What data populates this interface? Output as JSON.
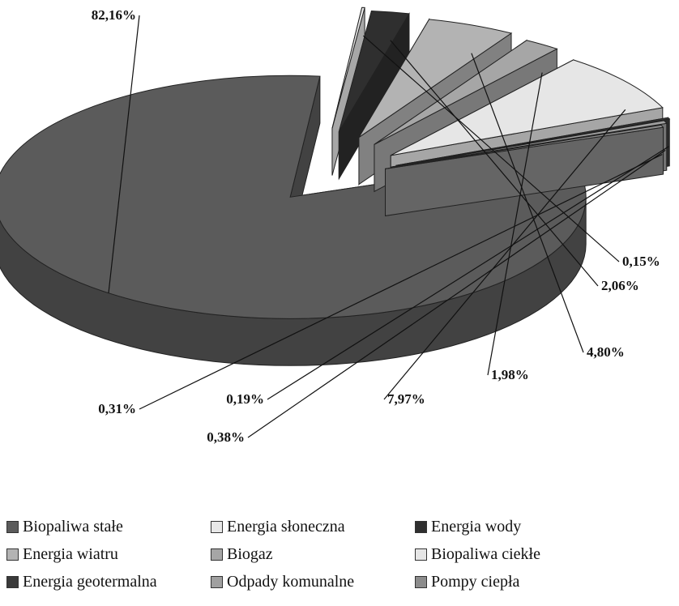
{
  "chart_data": {
    "type": "pie",
    "title": "",
    "exploded_3d": true,
    "legend_position": "bottom",
    "slices": [
      {
        "label": "Biopaliwa stałe",
        "value": 82.16,
        "value_label": "82,16%",
        "color": "#5b5b5b"
      },
      {
        "label": "Energia słoneczna",
        "value": 0.15,
        "value_label": "0,15%",
        "color": "#e8e8e8"
      },
      {
        "label": "Energia wody",
        "value": 2.06,
        "value_label": "2,06%",
        "color": "#2f2f2f"
      },
      {
        "label": "Energia wiatru",
        "value": 4.8,
        "value_label": "4,80%",
        "color": "#b3b3b3"
      },
      {
        "label": "Biogaz",
        "value": 1.98,
        "value_label": "1,98%",
        "color": "#a6a6a6"
      },
      {
        "label": "Biopaliwa ciekłe",
        "value": 7.97,
        "value_label": "7,97%",
        "color": "#e6e6e6"
      },
      {
        "label": "Energia geotermalna",
        "value": 0.19,
        "value_label": "0,19%",
        "color": "#3a3a3a"
      },
      {
        "label": "Odpady komunalne",
        "value": 0.38,
        "value_label": "0,38%",
        "color": "#a0a0a0"
      },
      {
        "label": "Pompy ciepła",
        "value": 0.31,
        "value_label": "0,31%",
        "color": "#8c8c8c"
      }
    ]
  }
}
